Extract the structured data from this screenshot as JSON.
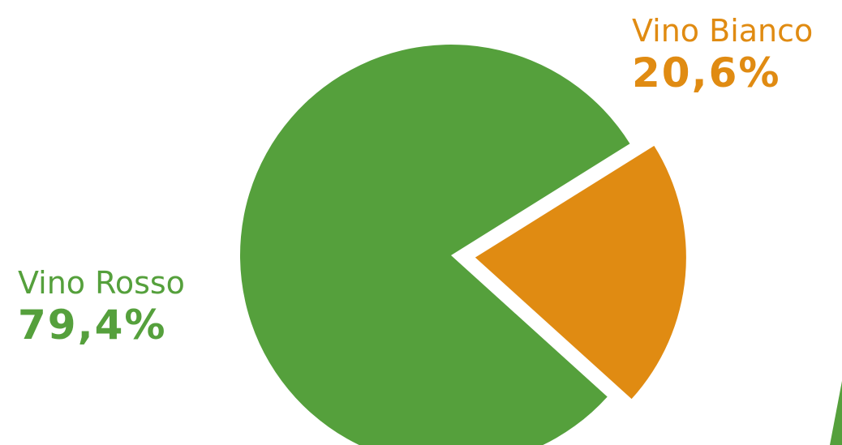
{
  "chart_data": {
    "type": "pie",
    "slices": [
      {
        "label": "Vino Rosso",
        "value": 79.4,
        "value_label": "79,4%",
        "color": "#55a03c",
        "exploded": false
      },
      {
        "label": "Vino Bianco",
        "value": 20.6,
        "value_label": "20,6%",
        "color": "#e08b12",
        "exploded": true
      }
    ]
  }
}
